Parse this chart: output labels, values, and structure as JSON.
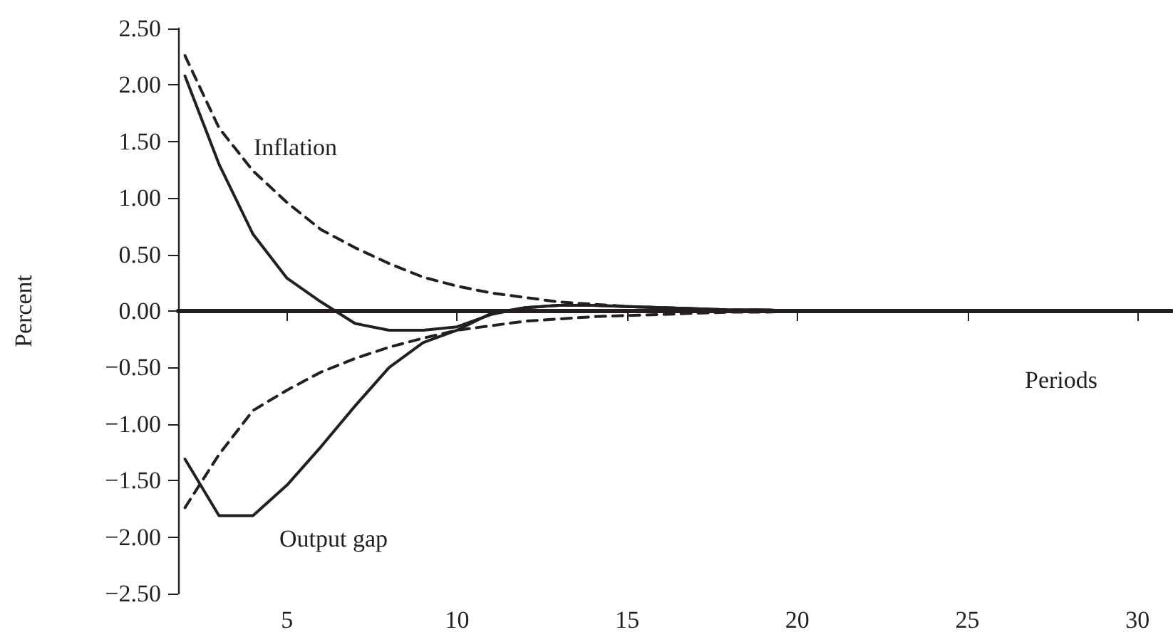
{
  "chart_data": {
    "type": "line",
    "xlabel": "Periods",
    "ylabel": "Percent",
    "x": [
      2,
      3,
      4,
      5,
      6,
      7,
      8,
      9,
      10,
      11,
      12,
      13,
      14,
      15,
      16,
      17,
      18,
      19,
      20,
      21,
      22,
      23,
      24,
      25,
      26,
      27,
      28,
      29,
      30
    ],
    "series": [
      {
        "color": "#231f20",
        "line_style": "solid",
        "values": [
          2.08,
          1.3,
          0.68,
          0.29,
          0.08,
          -0.11,
          -0.17,
          -0.17,
          -0.14,
          -0.03,
          0.03,
          0.05,
          0.05,
          0.04,
          0.03,
          0.02,
          0.01,
          0.01,
          0,
          0,
          0,
          0,
          0,
          0,
          0,
          0,
          0,
          0,
          0
        ]
      },
      {
        "color": "#231f20",
        "line_style": "dashed",
        "values": [
          2.26,
          1.62,
          1.24,
          0.96,
          0.72,
          0.56,
          0.42,
          0.3,
          0.22,
          0.16,
          0.12,
          0.08,
          0.06,
          0.04,
          0.03,
          0.02,
          0.01,
          0.01,
          0,
          0,
          0,
          0,
          0,
          0,
          0,
          0,
          0,
          0,
          0
        ]
      },
      {
        "color": "#231f20",
        "line_style": "solid",
        "values": [
          -1.31,
          -1.81,
          -1.81,
          -1.54,
          -1.2,
          -0.84,
          -0.5,
          -0.28,
          -0.17,
          -0.02,
          0.03,
          0.05,
          0.05,
          0.04,
          0.03,
          0.02,
          0.01,
          0.01,
          0,
          0,
          0,
          0,
          0,
          0,
          0,
          0,
          0,
          0,
          0
        ]
      },
      {
        "color": "#231f20",
        "line_style": "dashed",
        "values": [
          -1.74,
          -1.27,
          -0.88,
          -0.7,
          -0.54,
          -0.42,
          -0.32,
          -0.24,
          -0.17,
          -0.13,
          -0.09,
          -0.07,
          -0.05,
          -0.04,
          -0.03,
          -0.02,
          -0.01,
          -0.01,
          0,
          0,
          0,
          0,
          0,
          0,
          0,
          0,
          0,
          0,
          0
        ]
      }
    ],
    "annotations": [
      "Inflation",
      "Output gap"
    ],
    "xlim": [
      1.8,
      31
    ],
    "xticks": [
      5,
      10,
      15,
      20,
      25,
      30
    ],
    "ylim": [
      -2.5,
      2.5
    ],
    "yticks": [
      {
        "value": 2.5,
        "label": "2.50"
      },
      {
        "value": 2,
        "label": "2.00"
      },
      {
        "value": 1.5,
        "label": "1.50"
      },
      {
        "value": 1,
        "label": "1.00"
      },
      {
        "value": 0.5,
        "label": "0.50"
      },
      {
        "value": 0,
        "label": "0.00"
      },
      {
        "value": -0.5,
        "label": "−0.50"
      },
      {
        "value": -1,
        "label": "−1.00"
      },
      {
        "value": -1.5,
        "label": "−1.50"
      },
      {
        "value": -2,
        "label": "−2.00"
      },
      {
        "value": -2.5,
        "label": "−2.50"
      }
    ],
    "marker": "none"
  }
}
